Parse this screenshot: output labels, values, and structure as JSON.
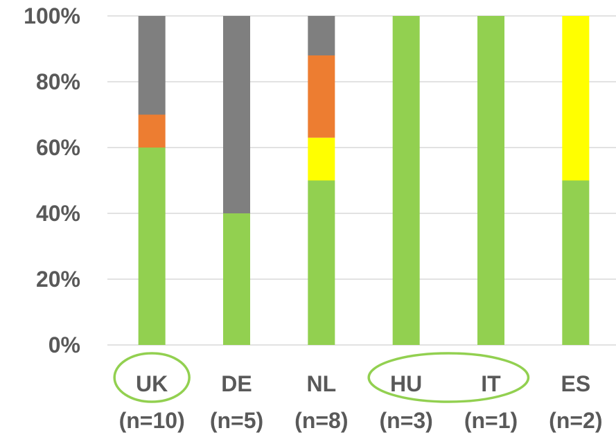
{
  "chart_data": {
    "type": "bar",
    "stacked": true,
    "categories": [
      "UK",
      "DE",
      "NL",
      "HU",
      "IT",
      "ES"
    ],
    "category_sublabels": [
      "(n=10)",
      "(n=5)",
      "(n=8)",
      "(n=3)",
      "(n=1)",
      "(n=2)"
    ],
    "series": [
      {
        "color": "#92d050",
        "values": [
          60,
          40,
          50,
          100,
          100,
          50
        ]
      },
      {
        "color": "#ffff00",
        "values": [
          0,
          0,
          13,
          0,
          0,
          50
        ]
      },
      {
        "color": "#ed7d31",
        "values": [
          10,
          0,
          25,
          0,
          0,
          0
        ]
      },
      {
        "color": "#7f7f7f",
        "values": [
          30,
          60,
          12,
          0,
          0,
          0
        ]
      }
    ],
    "y_ticks": [
      "0%",
      "20%",
      "40%",
      "60%",
      "80%",
      "100%"
    ],
    "ylim": [
      0,
      100
    ],
    "grid": true,
    "highlights": [
      {
        "categories": [
          "UK"
        ],
        "color": "#92d050"
      },
      {
        "categories": [
          "HU",
          "IT"
        ],
        "color": "#92d050"
      }
    ]
  }
}
